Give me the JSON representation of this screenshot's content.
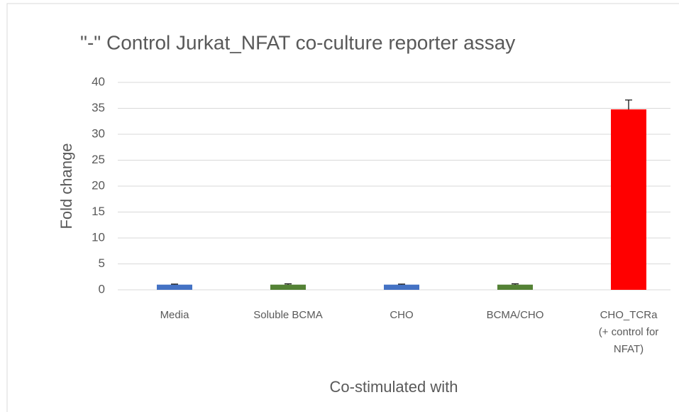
{
  "chart_data": {
    "type": "bar",
    "title": "\"-\" Control Jurkat_NFAT co-culture reporter assay",
    "x_label": "Co-stimulated with",
    "y_label": "Fold change",
    "categories": [
      [
        "Media"
      ],
      [
        "Soluble BCMA"
      ],
      [
        "CHO"
      ],
      [
        "BCMA/CHO"
      ],
      [
        "CHO_TCRa",
        "(+ control for",
        "NFAT)"
      ]
    ],
    "values": [
      1,
      1,
      1,
      1,
      34.8
    ],
    "errors": [
      0.1,
      0.15,
      0.1,
      0.15,
      1.8
    ],
    "colors": [
      "#4472c4",
      "#548235",
      "#4472c4",
      "#548235",
      "#ff0000"
    ],
    "ylim": [
      0,
      40
    ],
    "yticks": [
      0,
      5,
      10,
      15,
      20,
      25,
      30,
      35,
      40
    ],
    "grid": true
  }
}
